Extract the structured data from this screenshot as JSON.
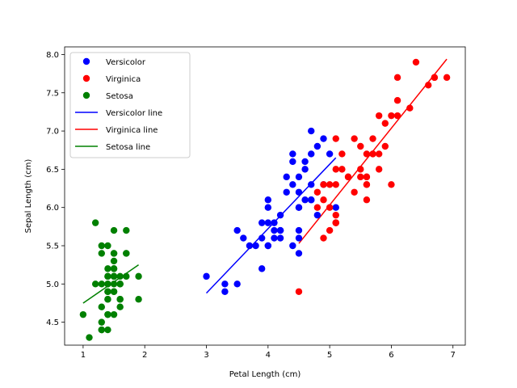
{
  "chart_data": {
    "type": "scatter",
    "xlabel": "Petal Length (cm)",
    "ylabel": "Sepal Length (cm)",
    "xlim": [
      0.7,
      7.2
    ],
    "ylim": [
      4.2,
      8.1
    ],
    "xticks": [
      1,
      2,
      3,
      4,
      5,
      6,
      7
    ],
    "yticks": [
      4.5,
      5.0,
      5.5,
      6.0,
      6.5,
      7.0,
      7.5,
      8.0
    ],
    "xtick_labels": [
      "1",
      "2",
      "3",
      "4",
      "5",
      "6",
      "7"
    ],
    "ytick_labels": [
      "4.5",
      "5.0",
      "5.5",
      "6.0",
      "6.5",
      "7.0",
      "7.5",
      "8.0"
    ],
    "grid": false,
    "legend_position": "top-left",
    "series": [
      {
        "name": "Versicolor",
        "color": "#0000ff",
        "points": [
          [
            4.7,
            7.0
          ],
          [
            4.5,
            6.4
          ],
          [
            4.9,
            6.9
          ],
          [
            4.0,
            5.5
          ],
          [
            4.6,
            6.5
          ],
          [
            4.5,
            5.7
          ],
          [
            4.7,
            6.3
          ],
          [
            3.3,
            4.9
          ],
          [
            4.6,
            6.6
          ],
          [
            3.9,
            5.2
          ],
          [
            3.5,
            5.0
          ],
          [
            4.2,
            5.9
          ],
          [
            4.0,
            6.0
          ],
          [
            4.7,
            6.1
          ],
          [
            3.6,
            5.6
          ],
          [
            4.4,
            6.7
          ],
          [
            4.5,
            5.6
          ],
          [
            4.1,
            5.8
          ],
          [
            4.5,
            6.2
          ],
          [
            3.9,
            5.6
          ],
          [
            4.8,
            5.9
          ],
          [
            4.0,
            6.1
          ],
          [
            4.9,
            6.3
          ],
          [
            4.7,
            6.1
          ],
          [
            4.3,
            6.4
          ],
          [
            4.4,
            6.6
          ],
          [
            4.8,
            6.8
          ],
          [
            5.0,
            6.7
          ],
          [
            4.5,
            6.0
          ],
          [
            3.5,
            5.7
          ],
          [
            3.8,
            5.5
          ],
          [
            3.7,
            5.5
          ],
          [
            3.9,
            5.8
          ],
          [
            5.1,
            6.0
          ],
          [
            4.5,
            5.4
          ],
          [
            4.5,
            6.0
          ],
          [
            4.7,
            6.7
          ],
          [
            4.4,
            6.3
          ],
          [
            4.1,
            5.6
          ],
          [
            4.0,
            5.5
          ],
          [
            4.4,
            5.5
          ],
          [
            4.6,
            6.1
          ],
          [
            4.0,
            5.8
          ],
          [
            3.3,
            5.0
          ],
          [
            4.2,
            5.6
          ],
          [
            4.2,
            5.7
          ],
          [
            4.2,
            5.7
          ],
          [
            4.3,
            6.2
          ],
          [
            3.0,
            5.1
          ],
          [
            4.1,
            5.7
          ]
        ]
      },
      {
        "name": "Virginica",
        "color": "#ff0000",
        "points": [
          [
            6.0,
            6.3
          ],
          [
            5.1,
            5.8
          ],
          [
            5.9,
            7.1
          ],
          [
            5.6,
            6.3
          ],
          [
            5.8,
            6.5
          ],
          [
            6.6,
            7.6
          ],
          [
            4.5,
            4.9
          ],
          [
            6.3,
            7.3
          ],
          [
            5.8,
            6.7
          ],
          [
            6.1,
            7.2
          ],
          [
            5.1,
            6.5
          ],
          [
            5.3,
            6.4
          ],
          [
            5.5,
            6.8
          ],
          [
            5.0,
            5.7
          ],
          [
            5.1,
            5.8
          ],
          [
            5.3,
            6.4
          ],
          [
            5.5,
            6.5
          ],
          [
            6.7,
            7.7
          ],
          [
            6.9,
            7.7
          ],
          [
            5.0,
            6.0
          ],
          [
            5.7,
            6.9
          ],
          [
            4.9,
            5.6
          ],
          [
            6.7,
            7.7
          ],
          [
            4.9,
            6.3
          ],
          [
            5.7,
            6.7
          ],
          [
            6.0,
            7.2
          ],
          [
            4.8,
            6.2
          ],
          [
            4.9,
            6.1
          ],
          [
            5.6,
            6.4
          ],
          [
            5.8,
            7.2
          ],
          [
            6.1,
            7.4
          ],
          [
            6.4,
            7.9
          ],
          [
            5.6,
            6.4
          ],
          [
            5.1,
            6.3
          ],
          [
            5.6,
            6.1
          ],
          [
            6.1,
            7.7
          ],
          [
            5.6,
            6.3
          ],
          [
            5.5,
            6.4
          ],
          [
            4.8,
            6.0
          ],
          [
            5.4,
            6.9
          ],
          [
            5.6,
            6.7
          ],
          [
            5.1,
            6.9
          ],
          [
            5.1,
            5.8
          ],
          [
            5.9,
            6.8
          ],
          [
            5.7,
            6.7
          ],
          [
            5.2,
            6.7
          ],
          [
            5.0,
            6.3
          ],
          [
            5.2,
            6.5
          ],
          [
            5.4,
            6.2
          ],
          [
            5.1,
            5.9
          ]
        ]
      },
      {
        "name": "Setosa",
        "color": "#008000",
        "points": [
          [
            1.4,
            5.1
          ],
          [
            1.4,
            4.9
          ],
          [
            1.3,
            4.7
          ],
          [
            1.5,
            4.6
          ],
          [
            1.4,
            5.0
          ],
          [
            1.7,
            5.4
          ],
          [
            1.4,
            4.6
          ],
          [
            1.5,
            5.0
          ],
          [
            1.4,
            4.4
          ],
          [
            1.5,
            4.9
          ],
          [
            1.5,
            5.4
          ],
          [
            1.6,
            4.8
          ],
          [
            1.4,
            4.8
          ],
          [
            1.1,
            4.3
          ],
          [
            1.2,
            5.8
          ],
          [
            1.5,
            5.7
          ],
          [
            1.3,
            5.4
          ],
          [
            1.4,
            5.1
          ],
          [
            1.7,
            5.7
          ],
          [
            1.5,
            5.1
          ],
          [
            1.7,
            5.4
          ],
          [
            1.5,
            5.1
          ],
          [
            1.0,
            4.6
          ],
          [
            1.7,
            5.1
          ],
          [
            1.9,
            4.8
          ],
          [
            1.6,
            5.0
          ],
          [
            1.6,
            5.0
          ],
          [
            1.5,
            5.2
          ],
          [
            1.4,
            5.2
          ],
          [
            1.6,
            4.7
          ],
          [
            1.6,
            4.8
          ],
          [
            1.5,
            5.4
          ],
          [
            1.5,
            5.2
          ],
          [
            1.4,
            5.5
          ],
          [
            1.5,
            4.9
          ],
          [
            1.2,
            5.0
          ],
          [
            1.3,
            5.5
          ],
          [
            1.4,
            4.9
          ],
          [
            1.3,
            4.4
          ],
          [
            1.5,
            5.1
          ],
          [
            1.3,
            5.0
          ],
          [
            1.3,
            4.5
          ],
          [
            1.3,
            4.4
          ],
          [
            1.6,
            5.0
          ],
          [
            1.9,
            5.1
          ],
          [
            1.4,
            4.8
          ],
          [
            1.6,
            5.1
          ],
          [
            1.4,
            4.6
          ],
          [
            1.5,
            5.3
          ],
          [
            1.4,
            5.0
          ]
        ]
      }
    ],
    "lines": [
      {
        "name": "Versicolor line",
        "color": "#0000ff",
        "x": [
          3.0,
          5.1
        ],
        "y": [
          4.88,
          6.65
        ]
      },
      {
        "name": "Virginica line",
        "color": "#ff0000",
        "x": [
          4.5,
          6.9
        ],
        "y": [
          5.53,
          7.94
        ]
      },
      {
        "name": "Setosa line",
        "color": "#008000",
        "x": [
          1.0,
          1.9
        ],
        "y": [
          4.75,
          5.25
        ]
      }
    ]
  }
}
